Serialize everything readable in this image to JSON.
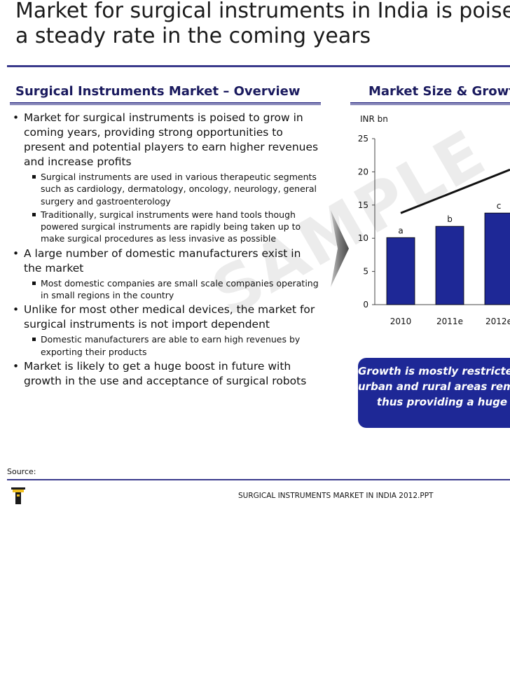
{
  "title": {
    "line1": "Market for surgical instruments in India is poised to grow at",
    "line2": "a steady rate in the coming years"
  },
  "overview": {
    "heading": "Surgical Instruments Market – Overview",
    "bullets": [
      {
        "text": "Market for surgical instruments is poised to grow in coming years, providing strong opportunities to present and potential players to earn higher revenues and increase profits",
        "sub": [
          "Surgical instruments are used in various therapeutic segments such as cardiology, dermatology, oncology, neurology, general surgery and gastroenterology",
          "Traditionally, surgical instruments were hand tools though powered surgical instruments are rapidly being taken up to make surgical procedures as less invasive as possible"
        ]
      },
      {
        "text": "A large number of domestic manufacturers exist in the market",
        "sub": [
          "Most domestic companies are small scale companies operating in small regions in the country"
        ]
      },
      {
        "text": "Unlike for most other medical devices, the market for surgical instruments is not import dependent",
        "sub": [
          "Domestic manufacturers are able to earn high revenues by exporting their products"
        ]
      },
      {
        "text": "Market is likely to get a huge boost in future with growth in the use and acceptance of surgical robots",
        "sub": []
      }
    ]
  },
  "market": {
    "heading": "Market Size & Growth"
  },
  "watermark": "SAMPLE",
  "chart_data": {
    "type": "bar",
    "unit_label": "INR bn",
    "categories": [
      "2010",
      "2011e",
      "2012e"
    ],
    "values": [
      10.1,
      11.8,
      13.8
    ],
    "data_labels": [
      "a",
      "b",
      "c"
    ],
    "ylim": [
      0,
      25
    ],
    "yticks": [
      0,
      5,
      10,
      15,
      20,
      25
    ],
    "trend_line": true,
    "bar_color": "#1e2896"
  },
  "callout": {
    "line1": "Growth is mostly restricted to",
    "line2": "urban and rural areas remain",
    "line3": "thus providing a huge"
  },
  "source": "Source:",
  "footer": "SURGICAL INSTRUMENTS MARKET IN INDIA 2012.PPT",
  "colors": {
    "accent": "#1e2896",
    "rule": "#3a3a8c",
    "heading": "#1a1a5e"
  }
}
